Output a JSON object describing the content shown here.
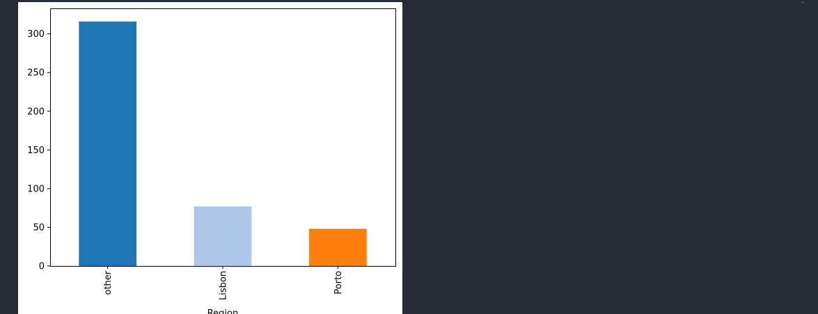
{
  "ui": {
    "collapse_icon": "chevron-up-icon",
    "collapse_glyph": "^",
    "background_color": "#272b34",
    "figure_background": "#ffffff"
  },
  "chart_data": {
    "type": "bar",
    "categories": [
      "other",
      "Lisbon",
      "Porto"
    ],
    "values": [
      316,
      77,
      48
    ],
    "bar_colors": [
      "#1f77b4",
      "#aec7e8",
      "#ff7f0e"
    ],
    "title": "",
    "xlabel": "Region",
    "ylabel": "",
    "ylim": [
      0,
      333
    ],
    "yticks": [
      0,
      50,
      100,
      150,
      200,
      250,
      300
    ],
    "ytick_labels": [
      "0",
      "50",
      "100",
      "150",
      "200",
      "250",
      "300"
    ],
    "grid": false,
    "legend": false,
    "xtick_rotation": "vertical"
  }
}
